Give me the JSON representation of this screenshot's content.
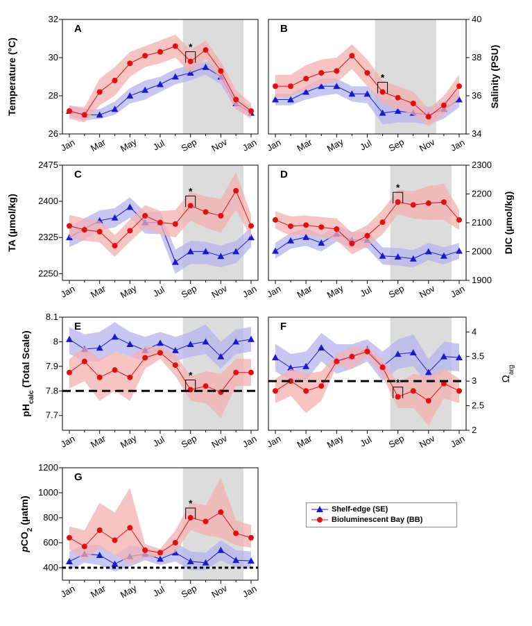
{
  "colors": {
    "se": "#1a1acc",
    "se_band": "#b4b4ee",
    "bb": "#e01010",
    "bb_band": "#f4b0b0",
    "shade": "#dcdcdc"
  },
  "legend": {
    "se_label": "Shelf-edge (SE)",
    "bb_label": "Bioluminescent Bay (BB)"
  },
  "chart_data": [
    {
      "id": "A",
      "panel_label": "A",
      "type": "line",
      "x_ticks": [
        "Jan",
        "Mar",
        "May",
        "Jul",
        "Sep",
        "Nov",
        "Jan"
      ],
      "ylabel": "Temperature (°C)",
      "ylim": [
        26,
        32
      ],
      "y_ticks": [
        26,
        28,
        30,
        32
      ],
      "shade_months": [
        7.5,
        11.5
      ],
      "star_month": 8,
      "series": [
        {
          "name": "Shelf-edge (SE)",
          "values": [
            27.2,
            27.0,
            27.0,
            27.3,
            28.0,
            28.3,
            28.6,
            29.0,
            29.2,
            29.5,
            29.0,
            27.6,
            27.1
          ],
          "lower": [
            26.9,
            26.7,
            26.8,
            27.0,
            27.6,
            27.8,
            28.2,
            28.6,
            28.8,
            29.1,
            28.6,
            27.3,
            26.9
          ],
          "upper": [
            27.5,
            27.3,
            27.3,
            27.7,
            28.4,
            28.8,
            29.0,
            29.4,
            29.6,
            29.8,
            29.4,
            28.0,
            27.4
          ]
        },
        {
          "name": "Bioluminescent Bay (BB)",
          "values": [
            27.2,
            27.0,
            28.2,
            28.8,
            29.7,
            30.1,
            30.3,
            30.6,
            29.8,
            30.4,
            29.3,
            27.8,
            27.2
          ],
          "lower": [
            26.8,
            26.6,
            27.5,
            28.0,
            29.0,
            29.5,
            29.7,
            30.0,
            29.2,
            29.9,
            28.8,
            27.3,
            26.8
          ],
          "upper": [
            27.5,
            27.4,
            28.9,
            29.5,
            30.3,
            30.6,
            30.9,
            31.2,
            30.4,
            30.9,
            29.8,
            28.3,
            27.6
          ]
        }
      ]
    },
    {
      "id": "B",
      "panel_label": "B",
      "type": "line",
      "x_ticks": [
        "Jan",
        "Mar",
        "May",
        "Jul",
        "Sep",
        "Nov",
        "Jan"
      ],
      "ylabel": "Salinity (PSU)",
      "ylim": [
        34,
        40
      ],
      "y_ticks": [
        34,
        36,
        38,
        40
      ],
      "shade_months": [
        6.5,
        10.5
      ],
      "star_month": 7,
      "series": [
        {
          "name": "Shelf-edge (SE)",
          "values": [
            35.8,
            35.8,
            36.2,
            36.5,
            36.5,
            36.1,
            36.1,
            35.1,
            35.2,
            35.1,
            35.0,
            35.3,
            35.8
          ],
          "lower": [
            35.5,
            35.5,
            35.8,
            36.0,
            36.1,
            35.7,
            35.6,
            34.5,
            34.6,
            34.6,
            34.5,
            34.8,
            35.4
          ],
          "upper": [
            36.1,
            36.1,
            36.5,
            36.9,
            36.9,
            36.5,
            36.5,
            35.8,
            35.8,
            35.6,
            35.4,
            35.7,
            36.2
          ]
        },
        {
          "name": "Bioluminescent Bay (BB)",
          "values": [
            36.5,
            36.5,
            36.9,
            37.2,
            37.3,
            38.1,
            37.2,
            36.2,
            35.9,
            35.6,
            34.9,
            35.5,
            36.5
          ],
          "lower": [
            35.9,
            36.0,
            36.3,
            36.6,
            36.7,
            37.4,
            36.5,
            35.6,
            35.3,
            35.0,
            34.4,
            35.0,
            35.9
          ],
          "upper": [
            37.1,
            37.1,
            37.6,
            37.9,
            38.0,
            38.7,
            37.9,
            36.8,
            36.5,
            36.2,
            35.3,
            36.0,
            37.1
          ]
        }
      ]
    },
    {
      "id": "C",
      "panel_label": "C",
      "type": "line",
      "x_ticks": [
        "Jan",
        "Mar",
        "May",
        "Jul",
        "Sep",
        "Nov",
        "Jan"
      ],
      "ylabel": "TA (µmol/kg)",
      "ylim": [
        2236,
        2475
      ],
      "y_ticks": [
        2250,
        2325,
        2400,
        2475
      ],
      "shade_months": [
        7.5,
        11.5
      ],
      "star_month": 8,
      "series": [
        {
          "name": "Shelf-edge (SE)",
          "values": [
            2325,
            2343,
            2360,
            2366,
            2388,
            2356,
            2356,
            2274,
            2296,
            2296,
            2286,
            2296,
            2325
          ],
          "lower": [
            2305,
            2320,
            2340,
            2346,
            2366,
            2333,
            2332,
            2250,
            2270,
            2270,
            2263,
            2272,
            2305
          ],
          "upper": [
            2345,
            2365,
            2381,
            2386,
            2408,
            2378,
            2378,
            2300,
            2318,
            2316,
            2308,
            2318,
            2346
          ]
        },
        {
          "name": "Bioluminescent Bay (BB)",
          "values": [
            2349,
            2341,
            2337,
            2308,
            2339,
            2370,
            2356,
            2353,
            2391,
            2378,
            2370,
            2422,
            2349
          ],
          "lower": [
            2325,
            2318,
            2315,
            2285,
            2316,
            2345,
            2332,
            2325,
            2360,
            2345,
            2335,
            2382,
            2325
          ],
          "upper": [
            2372,
            2364,
            2360,
            2330,
            2362,
            2392,
            2380,
            2382,
            2420,
            2410,
            2405,
            2460,
            2372
          ]
        }
      ]
    },
    {
      "id": "D",
      "panel_label": "D",
      "type": "line",
      "x_ticks": [
        "Jan",
        "Mar",
        "May",
        "Jul",
        "Sep",
        "Nov",
        "Jan"
      ],
      "ylabel": "DIC (µmol/kg)",
      "ylim": [
        1900,
        2300
      ],
      "y_ticks": [
        1900,
        2000,
        2100,
        2200,
        2300
      ],
      "shade_months": [
        7.5,
        11.5
      ],
      "star_month": 8,
      "series": [
        {
          "name": "Shelf-edge (SE)",
          "values": [
            2002,
            2038,
            2050,
            2030,
            2062,
            2040,
            2040,
            1985,
            1982,
            1975,
            2000,
            1985,
            2002
          ],
          "lower": [
            1975,
            2010,
            2020,
            2000,
            2035,
            2012,
            2012,
            1955,
            1952,
            1945,
            1970,
            1955,
            1975
          ],
          "upper": [
            2030,
            2065,
            2080,
            2058,
            2090,
            2068,
            2068,
            2015,
            2012,
            2005,
            2030,
            2015,
            2030
          ]
        },
        {
          "name": "Bioluminescent Bay (BB)",
          "values": [
            2110,
            2088,
            2092,
            2085,
            2078,
            2028,
            2055,
            2102,
            2172,
            2162,
            2168,
            2172,
            2110
          ],
          "lower": [
            2080,
            2055,
            2060,
            2050,
            2040,
            1990,
            2018,
            2060,
            2130,
            2115,
            2110,
            2110,
            2075
          ],
          "upper": [
            2140,
            2122,
            2125,
            2120,
            2115,
            2066,
            2092,
            2145,
            2215,
            2210,
            2228,
            2235,
            2145
          ]
        }
      ]
    },
    {
      "id": "E",
      "panel_label": "E",
      "type": "line",
      "x_ticks": [
        "Jan",
        "Mar",
        "May",
        "Jul",
        "Sep",
        "Nov",
        "Jan"
      ],
      "ylabel": "pHcalc (Total Scale)",
      "ylim": [
        7.64,
        8.1
      ],
      "y_ticks": [
        7.7,
        7.8,
        7.9,
        8.0,
        8.1
      ],
      "shade_months": [
        7.5,
        11.5
      ],
      "star_month": 8,
      "reference_y": 7.8,
      "series": [
        {
          "name": "Shelf-edge (SE)",
          "values": [
            8.01,
            7.97,
            7.975,
            8.02,
            7.99,
            7.965,
            7.995,
            7.965,
            7.99,
            8.0,
            7.94,
            8.0,
            8.01
          ],
          "lower": [
            7.95,
            7.92,
            7.92,
            7.96,
            7.94,
            7.92,
            7.95,
            7.92,
            7.94,
            7.95,
            7.89,
            7.95,
            7.96
          ],
          "upper": [
            8.06,
            8.03,
            8.04,
            8.08,
            8.04,
            8.02,
            8.04,
            8.02,
            8.04,
            8.07,
            8.0,
            8.05,
            8.06
          ]
        },
        {
          "name": "Bioluminescent Bay (BB)",
          "values": [
            7.875,
            7.92,
            7.855,
            7.885,
            7.855,
            7.935,
            7.955,
            7.905,
            7.805,
            7.82,
            7.795,
            7.875,
            7.875
          ],
          "lower": [
            7.81,
            7.84,
            7.76,
            7.8,
            7.76,
            7.89,
            7.93,
            7.86,
            7.76,
            7.75,
            7.69,
            7.82,
            7.82
          ],
          "upper": [
            7.93,
            7.98,
            7.93,
            7.96,
            7.94,
            7.98,
            7.98,
            7.95,
            7.86,
            7.88,
            7.87,
            7.93,
            7.93
          ]
        }
      ]
    },
    {
      "id": "F",
      "panel_label": "F",
      "type": "line",
      "x_ticks": [
        "Jan",
        "Mar",
        "May",
        "Jul",
        "Sep",
        "Nov",
        "Jan"
      ],
      "ylabel": "Ωarg",
      "ylim": [
        2.0,
        4.3
      ],
      "y_ticks": [
        2.0,
        2.5,
        3.0,
        3.5,
        4.0
      ],
      "shade_months": [
        7.5,
        11.5
      ],
      "star_month": 8,
      "reference_y": 3.0,
      "series": [
        {
          "name": "Shelf-edge (SE)",
          "values": [
            3.48,
            3.27,
            3.3,
            3.68,
            3.42,
            3.5,
            3.65,
            3.3,
            3.55,
            3.58,
            3.18,
            3.5,
            3.48
          ],
          "lower": [
            3.2,
            3.0,
            3.02,
            3.4,
            3.15,
            3.25,
            3.4,
            3.0,
            3.25,
            3.3,
            2.92,
            3.22,
            3.2
          ],
          "upper": [
            3.76,
            3.55,
            3.6,
            3.98,
            3.75,
            3.75,
            3.85,
            3.6,
            3.85,
            3.95,
            3.45,
            3.8,
            3.76
          ]
        },
        {
          "name": "Bioluminescent Bay (BB)",
          "values": [
            2.8,
            3.0,
            2.8,
            2.9,
            3.4,
            3.5,
            3.6,
            3.28,
            2.68,
            2.8,
            2.6,
            2.95,
            2.8
          ],
          "lower": [
            2.55,
            2.7,
            2.35,
            2.6,
            3.3,
            3.25,
            3.5,
            3.1,
            2.45,
            2.45,
            2.1,
            2.65,
            2.55
          ],
          "upper": [
            3.05,
            3.25,
            3.15,
            3.2,
            3.55,
            3.7,
            3.7,
            3.45,
            2.95,
            3.15,
            3.1,
            3.25,
            3.05
          ]
        }
      ]
    },
    {
      "id": "G",
      "panel_label": "G",
      "type": "line",
      "x_ticks": [
        "Jan",
        "Mar",
        "May",
        "Jul",
        "Sep",
        "Nov",
        "Jan"
      ],
      "ylabel": "pCO2 (µatm)",
      "ylim": [
        300,
        1200
      ],
      "y_ticks": [
        400,
        600,
        800,
        1000,
        1200
      ],
      "shade_months": [
        7.5,
        11.5
      ],
      "star_month": 8,
      "reference_y": 400,
      "series": [
        {
          "name": "Shelf-edge (SE)",
          "values": [
            450,
            510,
            500,
            430,
            490,
            510,
            470,
            520,
            450,
            440,
            540,
            460,
            455
          ],
          "lower": [
            380,
            440,
            420,
            370,
            410,
            460,
            420,
            450,
            380,
            380,
            460,
            400,
            390
          ],
          "upper": [
            530,
            590,
            580,
            500,
            580,
            560,
            530,
            600,
            530,
            520,
            620,
            540,
            530
          ]
        },
        {
          "name": "Bioluminescent Bay (BB)",
          "values": [
            640,
            570,
            700,
            620,
            720,
            540,
            520,
            600,
            800,
            770,
            845,
            675,
            640
          ],
          "lower": [
            550,
            460,
            560,
            500,
            430,
            480,
            490,
            520,
            700,
            660,
            640,
            580,
            560
          ],
          "upper": [
            730,
            700,
            920,
            840,
            1040,
            590,
            550,
            700,
            920,
            900,
            1120,
            780,
            740
          ]
        }
      ]
    }
  ]
}
